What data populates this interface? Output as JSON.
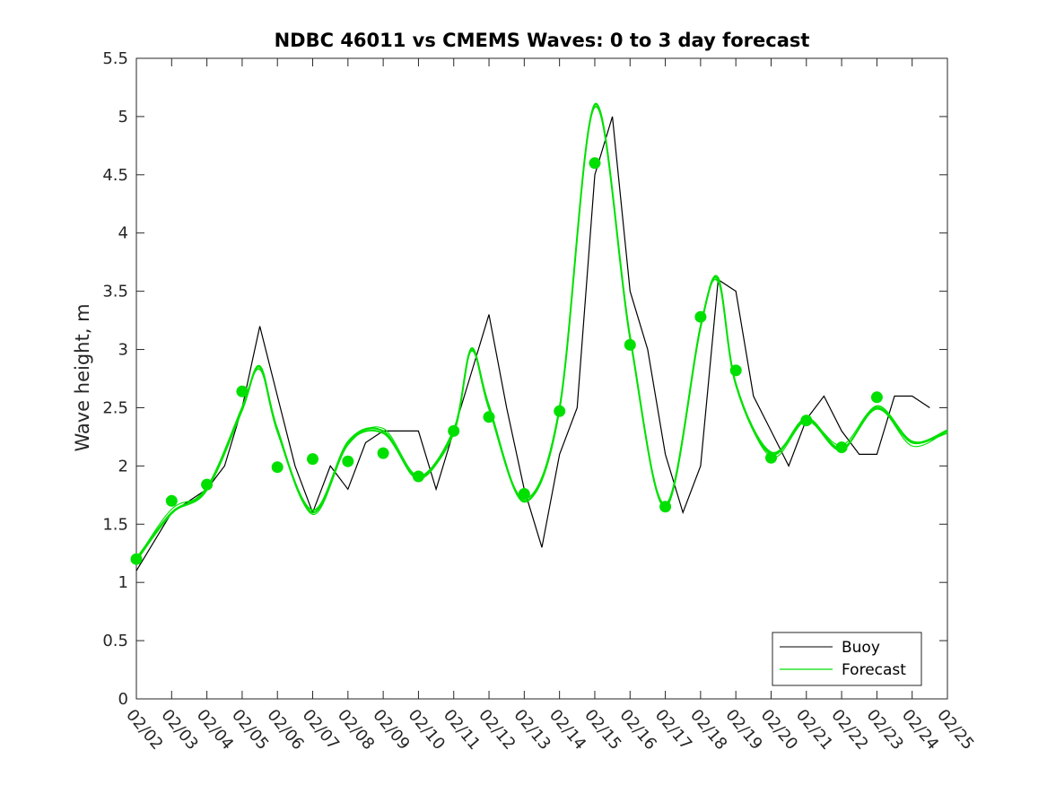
{
  "chart_data": {
    "type": "line",
    "title": "NDBC 46011 vs CMEMS Waves: 0 to 3 day forecast",
    "xlabel": "",
    "ylabel": "Wave height, m",
    "xlim": [
      "02/02",
      "02/25"
    ],
    "ylim": [
      0,
      5.5
    ],
    "x_ticks": [
      "02/02",
      "02/03",
      "02/04",
      "02/05",
      "02/06",
      "02/07",
      "02/08",
      "02/09",
      "02/10",
      "02/11",
      "02/12",
      "02/13",
      "02/14",
      "02/15",
      "02/16",
      "02/17",
      "02/18",
      "02/19",
      "02/20",
      "02/21",
      "02/22",
      "02/23",
      "02/24",
      "02/25"
    ],
    "y_ticks": [
      "0",
      "0.5",
      "1",
      "1.5",
      "2",
      "2.5",
      "3",
      "3.5",
      "4",
      "4.5",
      "5",
      "5.5"
    ],
    "legend_position": "bottom-right",
    "grid": false,
    "colors": {
      "buoy": "#000000",
      "forecast": "#00e000"
    },
    "series": [
      {
        "name": "Buoy",
        "style": "thin-line",
        "x": [
          "02/02",
          "02/03",
          "02/04",
          "02/04",
          "02/05",
          "02/05",
          "02/06",
          "02/06",
          "02/07",
          "02/07",
          "02/08",
          "02/08",
          "02/09",
          "02/10",
          "02/10",
          "02/11",
          "02/11",
          "02/12",
          "02/12",
          "02/13",
          "02/13",
          "02/14",
          "02/14",
          "02/15",
          "02/15",
          "02/16",
          "02/16",
          "02/17",
          "02/17",
          "02/18",
          "02/18",
          "02/19",
          "02/19",
          "02/20",
          "02/20",
          "02/21",
          "02/21",
          "02/22",
          "02/22",
          "02/23",
          "02/23",
          "02/24",
          "02/24"
        ],
        "values": [
          1.1,
          1.6,
          1.8,
          2.0,
          2.5,
          3.2,
          2.6,
          2.0,
          1.6,
          2.0,
          1.8,
          2.2,
          2.3,
          2.3,
          1.8,
          2.3,
          2.8,
          3.3,
          2.5,
          1.8,
          1.3,
          2.1,
          2.5,
          4.5,
          5.0,
          3.5,
          3.0,
          2.1,
          1.6,
          2.0,
          3.6,
          3.5,
          2.6,
          2.3,
          2.0,
          2.4,
          2.6,
          2.3,
          2.1,
          2.1,
          2.6,
          2.6,
          2.5
        ]
      },
      {
        "name": "Forecast",
        "style": "thin-lines (multiple runs)",
        "x": [
          "02/02",
          "02/03",
          "02/04",
          "02/05",
          "02/05",
          "02/06",
          "02/07",
          "02/08",
          "02/09",
          "02/10",
          "02/11",
          "02/11",
          "02/12",
          "02/13",
          "02/14",
          "02/15",
          "02/16",
          "02/17",
          "02/18",
          "02/18",
          "02/19",
          "02/20",
          "02/21",
          "02/22",
          "02/23",
          "02/24",
          "02/25"
        ],
        "values": [
          1.2,
          1.6,
          1.8,
          2.5,
          2.85,
          2.3,
          1.6,
          2.2,
          2.3,
          1.9,
          2.3,
          3.0,
          2.5,
          1.7,
          2.5,
          5.1,
          3.1,
          1.65,
          3.2,
          3.6,
          2.7,
          2.1,
          2.4,
          2.15,
          2.5,
          2.2,
          2.3
        ]
      },
      {
        "name": "",
        "style": "markers",
        "x": [
          "02/02",
          "02/03",
          "02/04",
          "02/05",
          "02/06",
          "02/07",
          "02/08",
          "02/09",
          "02/10",
          "02/11",
          "02/12",
          "02/13",
          "02/14",
          "02/15",
          "02/16",
          "02/17",
          "02/18",
          "02/19",
          "02/20",
          "02/21",
          "02/22",
          "02/23"
        ],
        "values": [
          1.2,
          1.7,
          1.84,
          2.64,
          1.99,
          2.06,
          2.04,
          2.11,
          1.91,
          2.3,
          2.42,
          1.76,
          2.47,
          4.6,
          3.04,
          1.65,
          3.28,
          2.82,
          2.07,
          2.39,
          2.16,
          2.59
        ]
      }
    ],
    "legend": [
      "Buoy",
      "Forecast"
    ]
  }
}
